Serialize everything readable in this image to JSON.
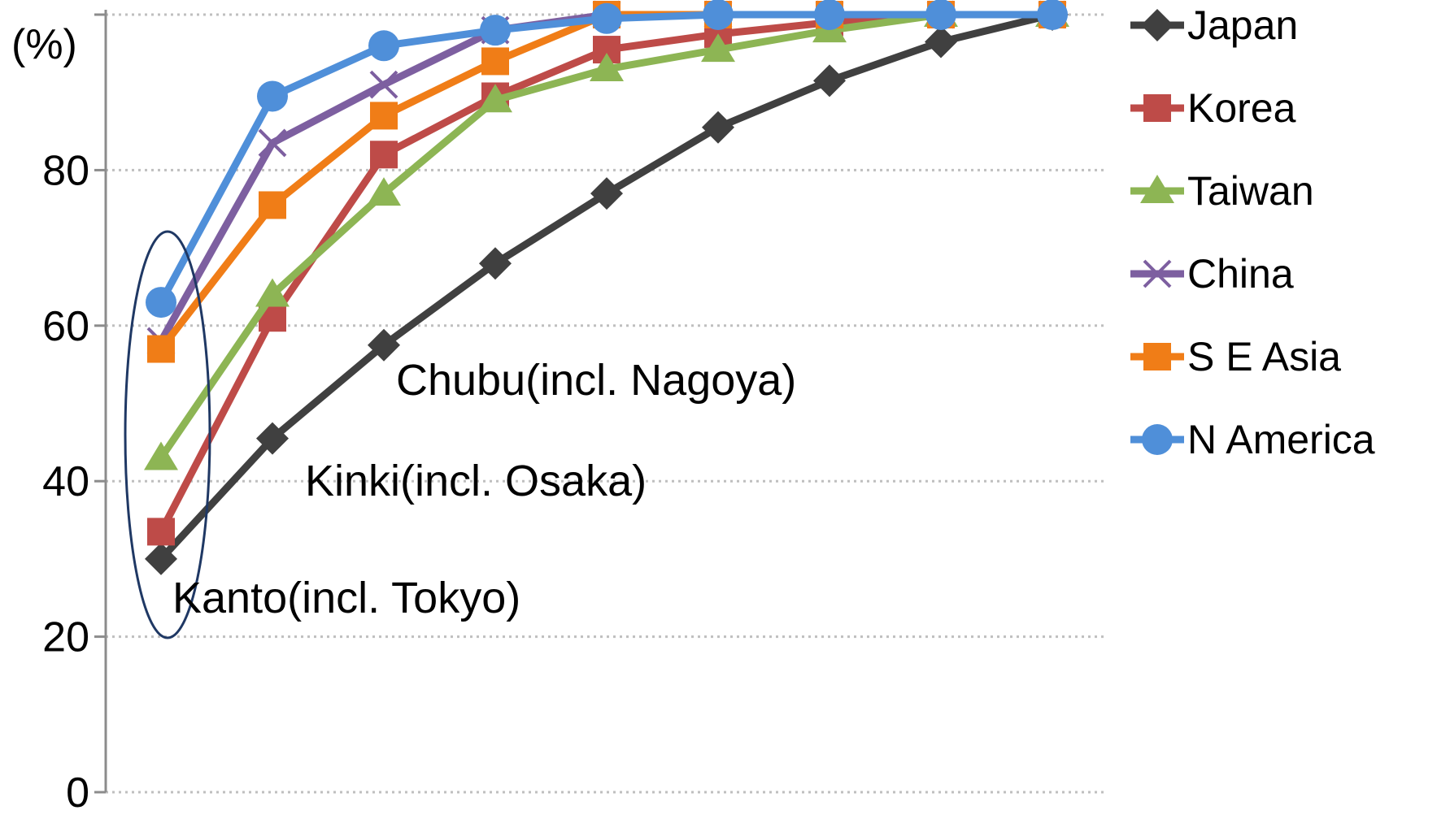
{
  "chart_data": {
    "type": "line",
    "y_unit": "(%)",
    "ylim": [
      0,
      100
    ],
    "yticks": [
      0,
      20,
      40,
      60,
      80
    ],
    "grid": true,
    "legend_position": "right",
    "x": [
      1,
      2,
      3,
      4,
      5,
      6,
      7,
      8,
      9
    ],
    "series": [
      {
        "name": "Japan",
        "color": "#404040",
        "marker": "diamond",
        "values": [
          30,
          45.5,
          57.5,
          68,
          77,
          85.5,
          91.5,
          96.5,
          100
        ]
      },
      {
        "name": "Korea",
        "color": "#be4b48",
        "marker": "square",
        "values": [
          33.5,
          61,
          82,
          89.5,
          95.5,
          97.5,
          99,
          100,
          100
        ]
      },
      {
        "name": "Taiwan",
        "color": "#8db554",
        "marker": "triangle",
        "values": [
          43,
          64,
          77,
          89,
          93,
          95.5,
          98,
          100,
          100
        ]
      },
      {
        "name": "China",
        "color": "#7d5fa0",
        "marker": "x",
        "values": [
          58,
          83.5,
          91,
          98,
          100,
          100,
          100,
          100,
          100
        ]
      },
      {
        "name": "S E Asia",
        "color": "#f07d17",
        "marker": "square",
        "values": [
          57,
          75.5,
          87,
          94,
          100,
          100,
          100,
          100,
          100
        ]
      },
      {
        "name": "N America",
        "color": "#4f8fd9",
        "marker": "circle",
        "values": [
          63,
          89.5,
          96,
          98,
          99.5,
          100,
          100,
          100,
          100
        ]
      }
    ],
    "annotations": [
      {
        "text": "Kanto(incl. Tokyo)",
        "x": 1,
        "y": 25
      },
      {
        "text": "Kinki(incl. Osaka)",
        "x": 2,
        "y": 40
      },
      {
        "text": "Chubu(incl. Nagoya)",
        "x": 3,
        "y": 53
      }
    ]
  }
}
